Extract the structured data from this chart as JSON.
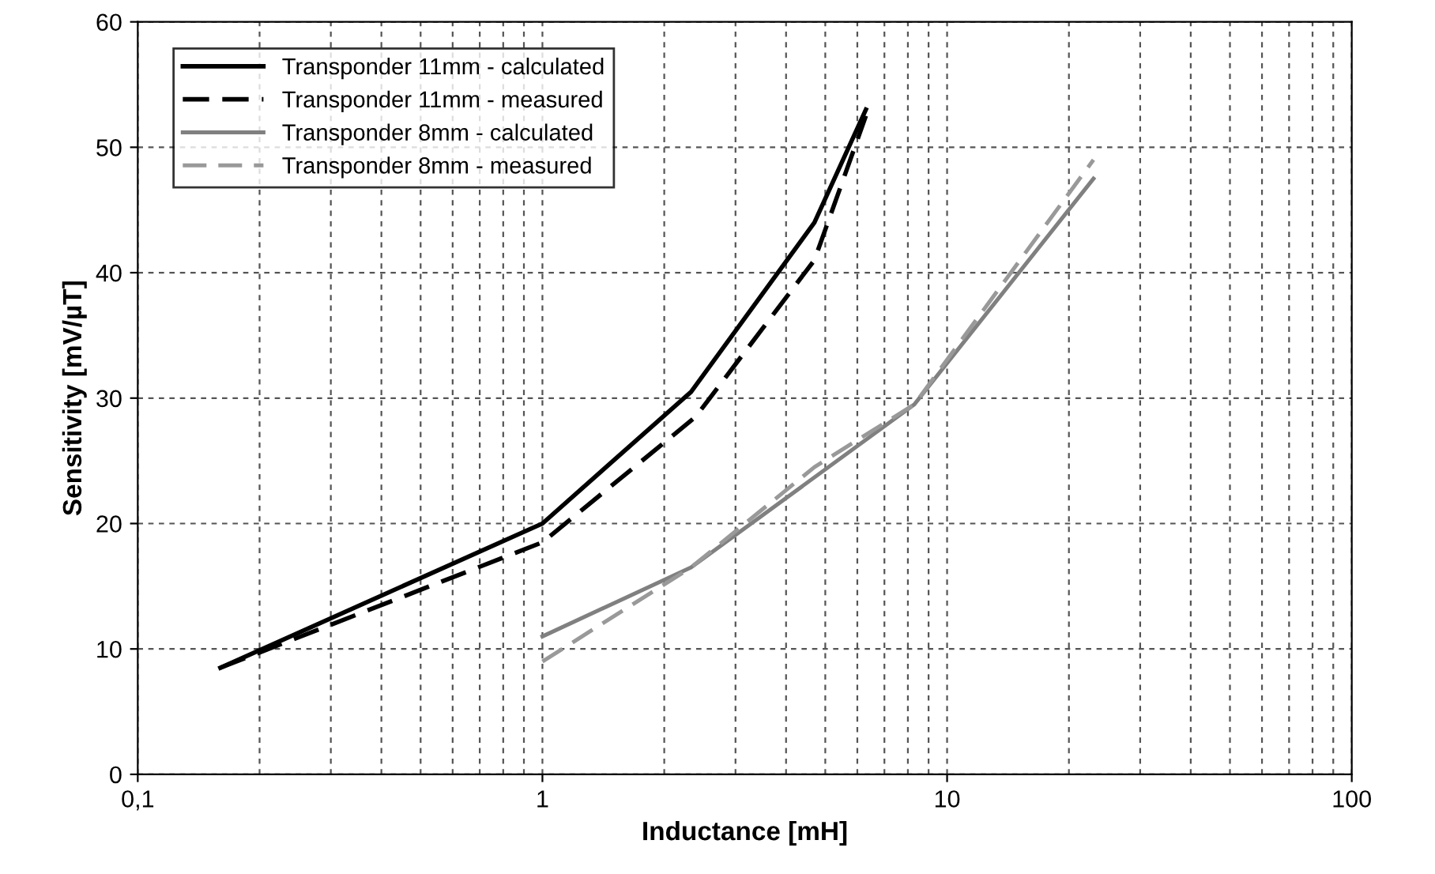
{
  "chart_data": {
    "type": "line",
    "xlabel": "Inductance [mH]",
    "ylabel": "Sensitivity [mV/µT]",
    "log": "x",
    "xlim": [
      0.1,
      100
    ],
    "xticks": [
      {
        "value": 0.1,
        "label": "0,1"
      },
      1,
      10,
      100
    ],
    "ylim": [
      0,
      60
    ],
    "yticks": [
      0,
      10,
      20,
      30,
      40,
      50,
      60
    ],
    "grid": true,
    "legend": "top left",
    "marker": "none",
    "series": [
      {
        "name": "Transponder 11mm - calculated",
        "color": "#000000",
        "line_style": "solid",
        "x": [
          0.16,
          1,
          2.33,
          4.7,
          6.3
        ],
        "values": [
          8.5,
          20,
          30.5,
          44,
          53
        ]
      },
      {
        "name": "Transponder 11mm - measured",
        "color": "#000000",
        "line_style": "dashed",
        "x": [
          0.16,
          1,
          2.39,
          4.7,
          6.3
        ],
        "values": [
          8.5,
          18.5,
          28.5,
          41,
          52.5
        ]
      },
      {
        "name": "Transponder 8mm - calculated",
        "color": "#808080",
        "line_style": "solid",
        "x": [
          1,
          2.33,
          8.3,
          23
        ],
        "values": [
          11,
          16.5,
          29.5,
          47.5
        ]
      },
      {
        "name": "Transponder 8mm - measured",
        "color": "#999999",
        "line_style": "dashed",
        "x": [
          1,
          2.33,
          4.7,
          8.3,
          23
        ],
        "values": [
          9,
          16.5,
          24.5,
          29.5,
          49
        ]
      }
    ]
  }
}
